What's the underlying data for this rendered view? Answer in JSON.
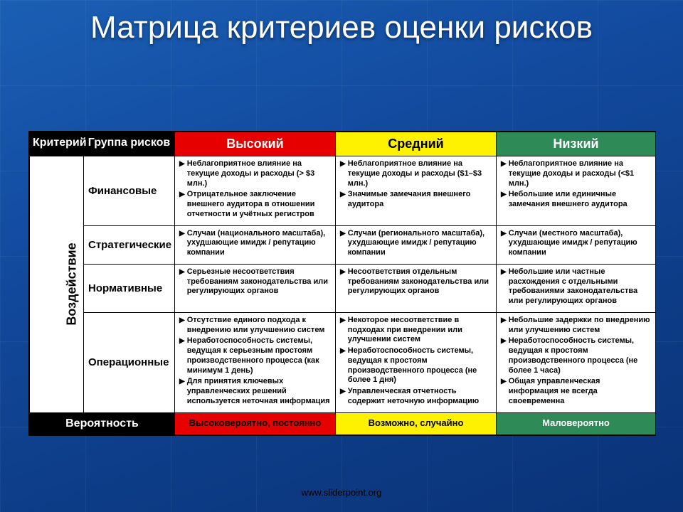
{
  "title": "Матрица критериев оценки рисков",
  "source": "www.sliderpoint.org",
  "colors": {
    "background_gradient_start": "#1a5fb4",
    "background_gradient_end": "#0a3378",
    "header_black": "#000000",
    "high": "#e60000",
    "medium": "#fff200",
    "low": "#2e8b57",
    "cell_bg": "#ffffff",
    "text": "#000000",
    "title_text": "#ffffff"
  },
  "table": {
    "header": {
      "c0": "Критерий",
      "c1": "Группа рисков",
      "high": "Высокий",
      "medium": "Средний",
      "low": "Низкий"
    },
    "side_label": "Воздействие",
    "rows": [
      {
        "group": "Финансовые",
        "high": [
          "Неблагоприятное влияние на текущие доходы и расходы (> $3 млн.)",
          "Отрицательное заключение внешнего аудитора в отношении отчетности и учётных регистров"
        ],
        "medium": [
          "Неблагоприятное влияние на текущие доходы и расходы ($1–$3 млн.)",
          "Значимые замечания внешнего аудитора"
        ],
        "low": [
          "Неблагоприятное влияние на текущие доходы и расходы (<$1 млн.)",
          "Небольшие или единичные замечания внешнего аудитора"
        ]
      },
      {
        "group": "Стратегические",
        "high": [
          "Случаи (национального масштаба), ухудшающие имидж / репутацию компании"
        ],
        "medium": [
          "Случаи (регионального масштаба), ухудшающие имидж / репутацию компании"
        ],
        "low": [
          "Случаи (местного масштаба), ухудшающие имидж / репутацию компании"
        ]
      },
      {
        "group": "Нормативные",
        "high": [
          "Серьезные несоответствия требованиям законодательства или регулирующих органов"
        ],
        "medium": [
          "Несоответствия отдельным требованиям законодательства или регулирующих органов"
        ],
        "low": [
          "Небольшие или частные расхождения с отдельными требованиями законодательства или регулирующих органов"
        ]
      },
      {
        "group": "Операционные",
        "high": [
          "Отсутствие единого подхода к внедрению или улучшению систем",
          "Неработоспособность системы, ведущая к серьезным простоям производственного процесса (как минимум 1 день)",
          "Для принятия ключевых управленческих решений используется неточная информация"
        ],
        "medium": [
          "Некоторое несоответствие в подходах при внедрении или улучшении систем",
          "Неработоспособность системы, ведущая к простоям производственного процесса (не более 1 дня)",
          "Управленческая отчетность содержит неточную информацию"
        ],
        "low": [
          "Небольшие задержки по внедрению или улучшению систем",
          "Неработоспособность системы, ведущая к простоям производственного процесса (не более 1 часа)",
          "Общая управленческая информация не всегда своевременна"
        ]
      }
    ],
    "footer": {
      "label": "Вероятность",
      "high": "Высоковероятно, постоянно",
      "medium": "Возможно, случайно",
      "low": "Маловероятно"
    }
  }
}
